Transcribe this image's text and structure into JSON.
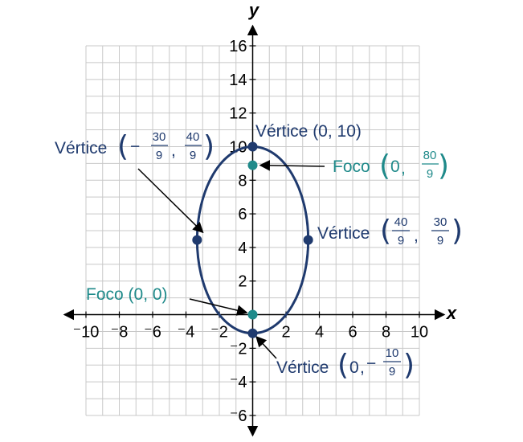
{
  "chart_data": {
    "type": "scatter",
    "xlabel": "x",
    "ylabel": "y",
    "xlim": [
      -10,
      10
    ],
    "ylim": [
      -6,
      16
    ],
    "grid": true,
    "x_ticks": [
      "⁻10",
      "⁻8",
      "⁻6",
      "⁻4",
      "⁻2",
      "2",
      "4",
      "6",
      "8",
      "10"
    ],
    "y_ticks": [
      "⁻6",
      "⁻4",
      "⁻2",
      "2",
      "4",
      "6",
      "8",
      "10",
      "12",
      "14",
      "16"
    ],
    "ellipse": {
      "center": [
        0,
        4.444
      ],
      "semi_axis_x": 3.333,
      "semi_axis_y": 5.556
    },
    "points": [
      {
        "x": 0,
        "y": 10,
        "kind": "vertex",
        "color": "#1f3a6e"
      },
      {
        "x": 0,
        "y": -1.111,
        "kind": "vertex",
        "color": "#1f3a6e"
      },
      {
        "x": -3.333,
        "y": 4.444,
        "kind": "vertex",
        "color": "#1f3a6e"
      },
      {
        "x": 3.333,
        "y": 4.444,
        "kind": "vertex",
        "color": "#1f3a6e"
      },
      {
        "x": 0,
        "y": 8.889,
        "kind": "focus",
        "color": "#1f8a8a"
      },
      {
        "x": 0,
        "y": 0,
        "kind": "focus",
        "color": "#1f8a8a"
      }
    ],
    "annotations": {
      "vertex_top": "Vértice (0, 10)",
      "vertex_word": "Vértice",
      "focus_word": "Foco",
      "focus_origin": "Foco (0, 0)",
      "zero": "0",
      "minus": "−",
      "comma": ",",
      "num_30": "30",
      "num_40": "40",
      "num_80": "80",
      "num_10": "10",
      "den_9": "9"
    },
    "colors": {
      "vertex": "#1f3a6e",
      "focus": "#1f8a8a",
      "curve": "#1f3a6e"
    }
  }
}
